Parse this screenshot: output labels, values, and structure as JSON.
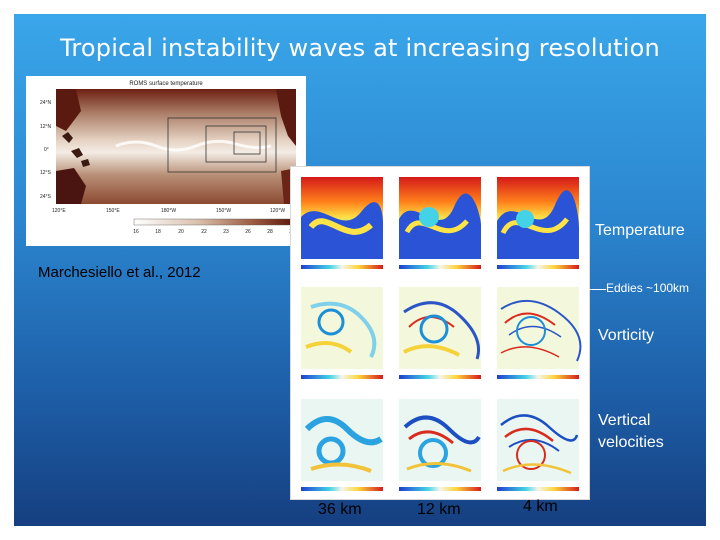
{
  "slide": {
    "title": "Tropical instability waves at increasing resolution",
    "citation": "Marchesiello et al., 2012",
    "annotations": {
      "temperature": "Temperature",
      "eddies": "Eddies ~100km",
      "vorticity": "Vorticity",
      "vertical_velocities_line1": "Vertical",
      "vertical_velocities_line2": "velocities"
    },
    "resolutions": [
      "36 km",
      "12 km",
      "4 km"
    ],
    "map": {
      "title": "ROMS surface temperature",
      "lat_labels": [
        "24°N",
        "12°N",
        "0°",
        "12°S",
        "24°S"
      ],
      "lon_labels": [
        "120°E",
        "150°E",
        "180°W",
        "150°W",
        "120°W"
      ],
      "colorbar_ticks": [
        "16",
        "18",
        "20",
        "22",
        "23",
        "26",
        "28",
        "30"
      ]
    },
    "colors": {
      "background_top": "#3aa6ea",
      "background_bottom": "#163f80",
      "text": "#ffffff"
    }
  }
}
